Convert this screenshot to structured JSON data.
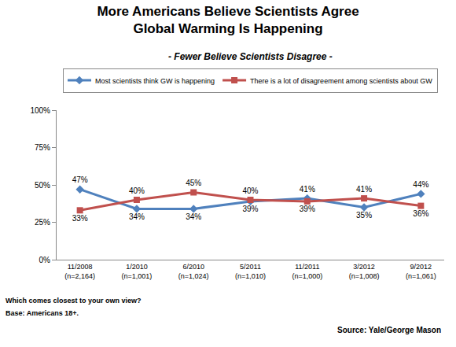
{
  "chart_data": {
    "type": "line",
    "title": "More Americans Believe Scientists Agree\nGlobal Warming Is Happening",
    "subtitle": "- Fewer Believe Scientists Disagree -",
    "categories": [
      "11/2008\n(n=2,164)",
      "1/2010\n(n=1,001)",
      "6/2010\n(n=1,024)",
      "5/2011\n(n=1,010)",
      "11/2011\n(n=1,000)",
      "3/2012\n(n=1,008)",
      "9/2012\n(n=1,061)"
    ],
    "series": [
      {
        "name": "Most scientists think GW is happening",
        "color": "#4f81bd",
        "marker": "diamond",
        "values": [
          47,
          34,
          34,
          39,
          41,
          35,
          44
        ],
        "value_labels": [
          "47%",
          "34%",
          "34%",
          "39%",
          "41%",
          "35%",
          "44%"
        ]
      },
      {
        "name": "There is a lot of disagreement among scientists about GW",
        "color": "#c0504d",
        "marker": "square",
        "values": [
          33,
          40,
          45,
          40,
          39,
          41,
          36
        ],
        "value_labels": [
          "33%",
          "40%",
          "45%",
          "40%",
          "39%",
          "41%",
          "36%"
        ]
      }
    ],
    "ylim": [
      0,
      100
    ],
    "yticks": [
      {
        "value": 0,
        "label": "0%"
      },
      {
        "value": 25,
        "label": "25%"
      },
      {
        "value": 50,
        "label": "50%"
      },
      {
        "value": 75,
        "label": "75%"
      },
      {
        "value": 100,
        "label": "100%"
      }
    ],
    "grid": false,
    "legend": "top",
    "data_labels": true,
    "annotations": [
      "Which comes closest to your own view?",
      "Base: Americans 18+."
    ],
    "source": "Source: Yale/George Mason"
  }
}
